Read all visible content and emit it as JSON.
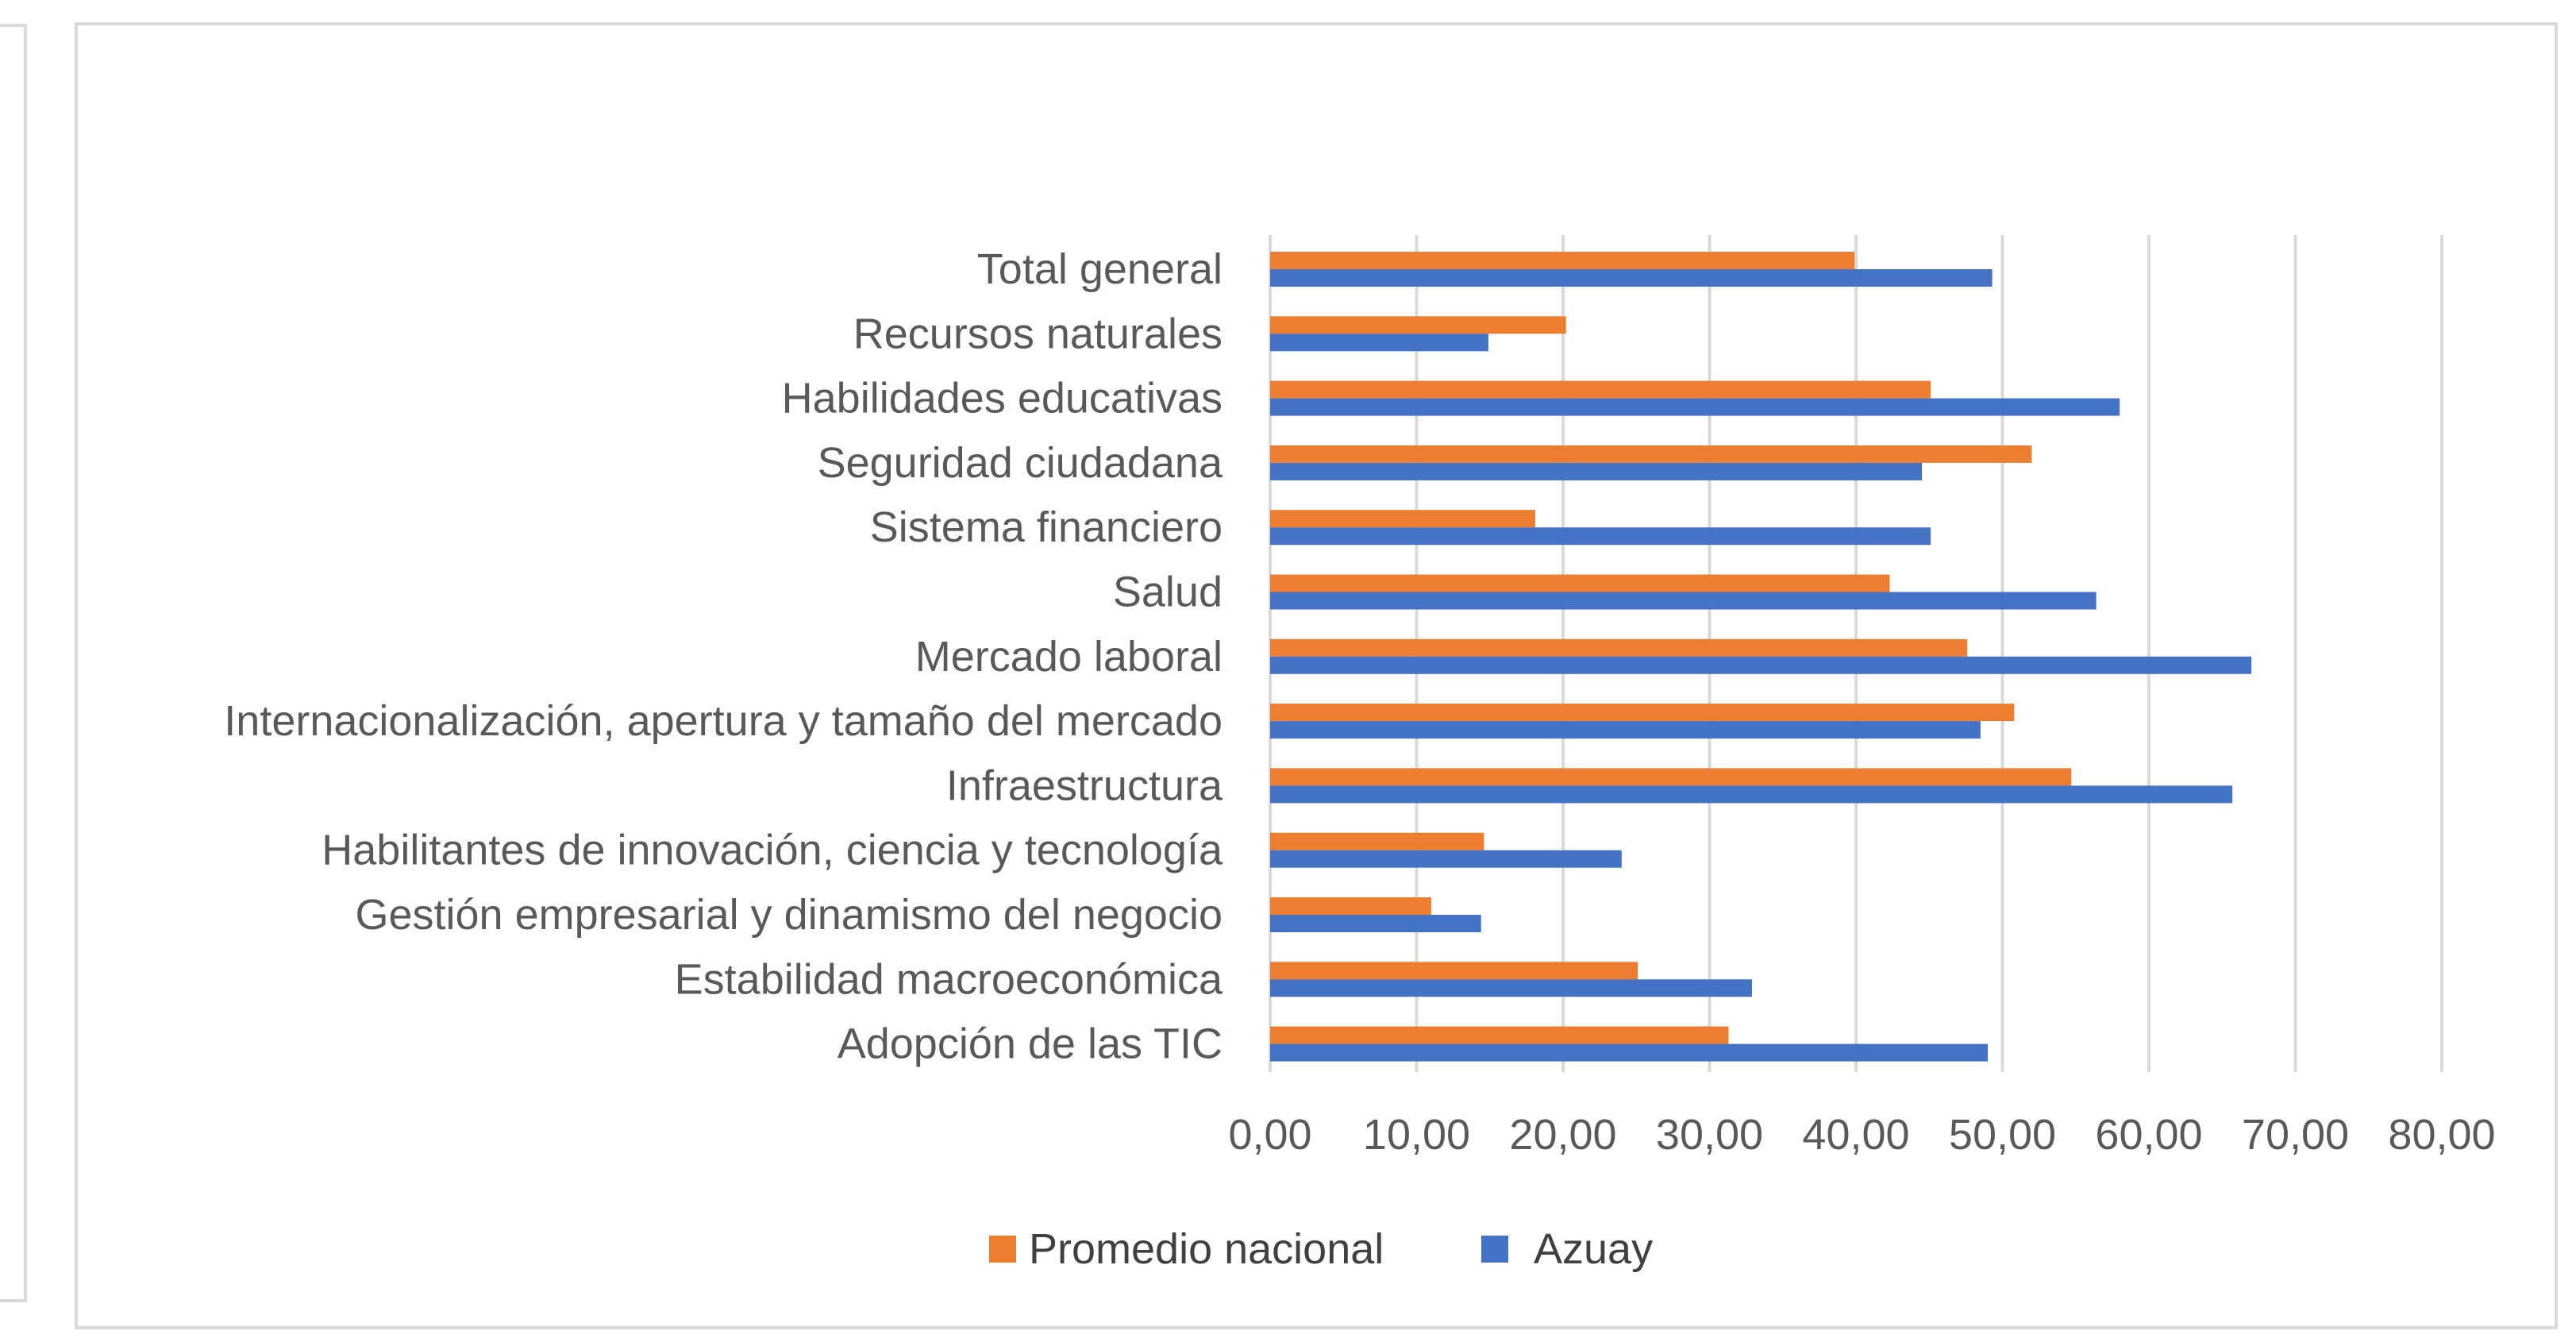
{
  "chart_data": {
    "type": "bar",
    "orientation": "horizontal",
    "categories": [
      "Total general",
      "Recursos naturales",
      "Habilidades educativas",
      "Seguridad ciudadana",
      "Sistema financiero",
      "Salud ",
      "Mercado laboral",
      "Internacionalización, apertura y tamaño del mercado",
      "Infraestructura ",
      "Habilitantes de innovación, ciencia y tecnología",
      "Gestión empresarial y dinamismo del negocio ",
      "Estabilidad macroeconómica",
      "Adopción de las TIC"
    ],
    "series": [
      {
        "name": "Promedio nacional",
        "color": "#ed7d31",
        "values": [
          39.9,
          20.2,
          45.1,
          52.0,
          18.1,
          42.3,
          47.6,
          50.8,
          54.7,
          14.6,
          11.0,
          25.1,
          31.3
        ]
      },
      {
        "name": "Azuay",
        "color": "#4472c4",
        "values": [
          49.3,
          14.9,
          58.0,
          44.5,
          45.1,
          56.4,
          67.0,
          48.5,
          65.7,
          24.0,
          14.4,
          32.9,
          49.0
        ]
      }
    ],
    "xlim": [
      0,
      80
    ],
    "x_ticks": [
      "0,00",
      "10,00",
      "20,00",
      "30,00",
      "40,00",
      "50,00",
      "60,00",
      "70,00",
      "80,00"
    ],
    "grid": true,
    "gridline_color": "#d9d9d9",
    "legend_position": "bottom",
    "title": "",
    "xlabel": "",
    "ylabel": ""
  }
}
